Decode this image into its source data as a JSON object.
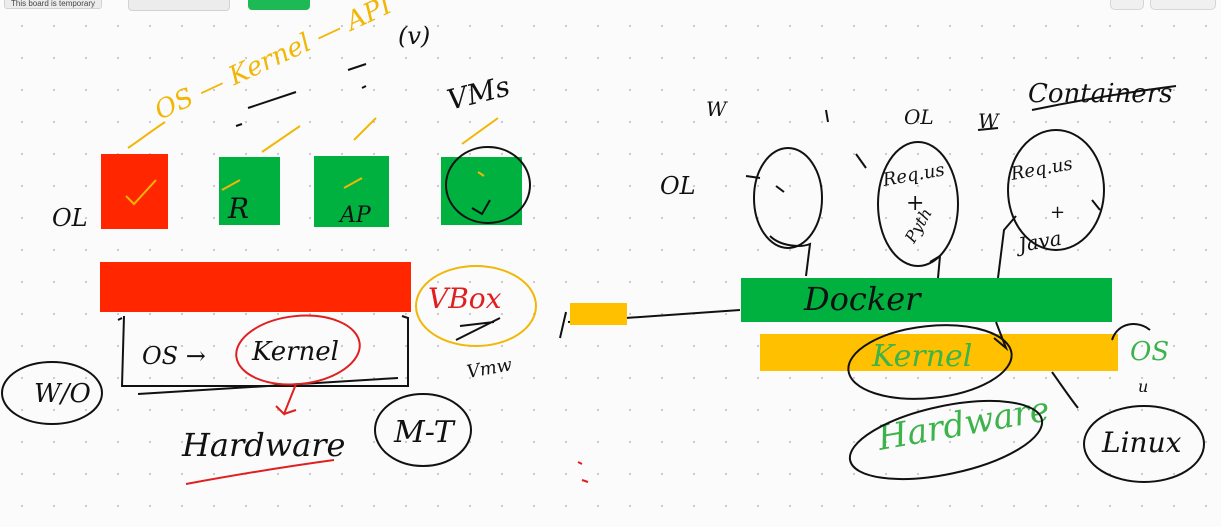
{
  "board": {
    "status_text": "This board is temporary"
  },
  "left": {
    "top_annotation": "OS — Kernel — API",
    "top_annotation_mark": "(v)",
    "vms_label": "VMs",
    "os_side_label": "OL",
    "boxes": [
      "R",
      "AP"
    ],
    "kernel_line_os": "OS →",
    "kernel_line_kernel": "Kernel",
    "hardware_label": "Hardware",
    "wo_label": "W/O",
    "mt_label": "M-T",
    "vbox_label": "VBox",
    "vmw_label": "Vmw"
  },
  "right": {
    "containers_label": "Containers",
    "top_marks": [
      "W",
      "OL",
      "W"
    ],
    "os_side_label": "OL",
    "bubble_middle": [
      "Req.us",
      "+",
      "Pyth"
    ],
    "bubble_right": [
      "Req.os",
      "+",
      "Java"
    ],
    "docker_label": "Docker",
    "kernel_label": "Kernel",
    "hardware_label": "Hardware",
    "os_label": "OS",
    "os_sub_mark": "u",
    "linux_label": "Linux"
  },
  "colors": {
    "red": "#ff2600",
    "green": "#00b140",
    "amber": "#ffc000",
    "ink": "#111111",
    "yellow_ink": "#f2b705",
    "green_ink": "#3cb44b"
  }
}
